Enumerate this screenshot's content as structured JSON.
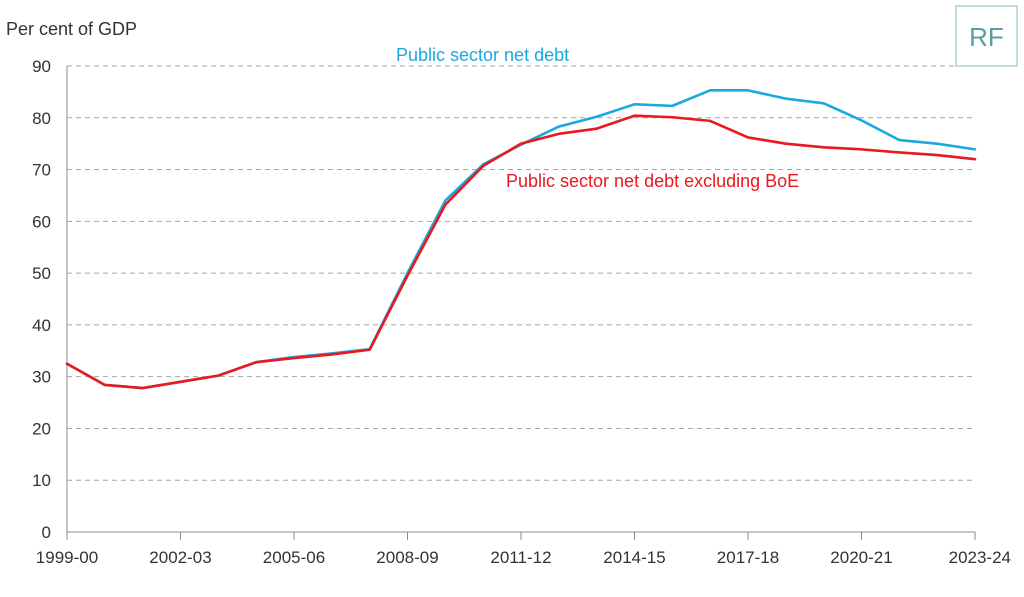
{
  "chart_data": {
    "type": "line",
    "ylabel": "Per cent of GDP",
    "ylim": [
      0,
      90
    ],
    "yticks": [
      0,
      10,
      20,
      30,
      40,
      50,
      60,
      70,
      80,
      90
    ],
    "grid": true,
    "x": [
      "1999-00",
      "2000-01",
      "2001-02",
      "2002-03",
      "2003-04",
      "2004-05",
      "2005-06",
      "2006-07",
      "2007-08",
      "2008-09",
      "2009-10",
      "2010-11",
      "2011-12",
      "2012-13",
      "2013-14",
      "2014-15",
      "2015-16",
      "2016-17",
      "2017-18",
      "2018-19",
      "2019-20",
      "2020-21",
      "2021-22",
      "2022-23",
      "2023-24"
    ],
    "xtick_labels": [
      "1999-00",
      "2002-03",
      "2005-06",
      "2008-09",
      "2011-12",
      "2014-15",
      "2017-18",
      "2020-21",
      "2023-24"
    ],
    "series": [
      {
        "name": "Public sector net debt",
        "color": "#1ba8e0",
        "values": [
          32.5,
          28.4,
          27.8,
          29.0,
          30.2,
          32.8,
          33.8,
          34.5,
          35.3,
          50.0,
          64.0,
          71.0,
          74.8,
          78.3,
          80.2,
          82.6,
          82.3,
          85.3,
          85.3,
          83.7,
          82.8,
          79.5,
          75.7,
          75.0,
          73.9
        ]
      },
      {
        "name": "Public sector net debt excluding BoE",
        "color": "#e8191f",
        "values": [
          32.5,
          28.4,
          27.8,
          29.0,
          30.2,
          32.8,
          33.6,
          34.3,
          35.2,
          49.5,
          63.2,
          70.7,
          75.0,
          76.9,
          77.9,
          80.4,
          80.1,
          79.4,
          76.2,
          75.0,
          74.3,
          73.9,
          73.3,
          72.8,
          72.0
        ]
      }
    ]
  },
  "logo": {
    "text": "RF",
    "color": "#5a9ea0"
  }
}
